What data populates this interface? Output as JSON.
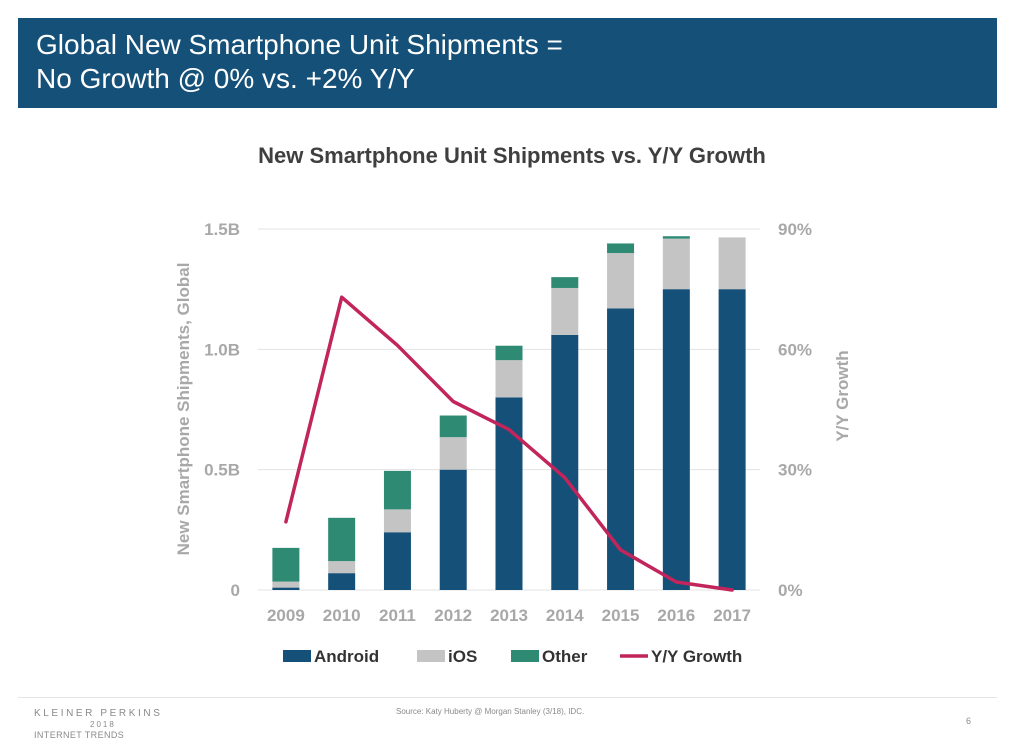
{
  "slide": {
    "title_line1": "Global New Smartphone Unit Shipments =",
    "title_line2": "No Growth @ 0% vs. +2% Y/Y",
    "page_number": "6"
  },
  "footer": {
    "logo_line1": "KLEINER PERKINS",
    "logo_line2": "2018",
    "logo_line3": "INTERNET TRENDS",
    "source": "Source: Katy Huberty @ Morgan Stanley (3/18), IDC."
  },
  "colors": {
    "android": "#155078",
    "ios": "#c4c4c4",
    "other": "#2f8a74",
    "growth_line": "#c2255c",
    "header_bg": "#155078",
    "axis_text": "#a8a8a8",
    "label_text": "#333333",
    "grid": "#e3e3e3"
  },
  "chart_data": {
    "type": "bar",
    "stacked": true,
    "title": "New Smartphone Unit Shipments vs. Y/Y Growth",
    "categories": [
      "2009",
      "2010",
      "2011",
      "2012",
      "2013",
      "2014",
      "2015",
      "2016",
      "2017"
    ],
    "series": [
      {
        "name": "Android",
        "type": "bar",
        "axis": "left",
        "values": [
          0.01,
          0.07,
          0.24,
          0.5,
          0.8,
          1.06,
          1.17,
          1.25,
          1.25
        ]
      },
      {
        "name": "iOS",
        "type": "bar",
        "axis": "left",
        "values": [
          0.025,
          0.05,
          0.095,
          0.135,
          0.155,
          0.195,
          0.23,
          0.21,
          0.215
        ]
      },
      {
        "name": "Other",
        "type": "bar",
        "axis": "left",
        "values": [
          0.14,
          0.18,
          0.16,
          0.09,
          0.06,
          0.045,
          0.04,
          0.01,
          0.0
        ]
      },
      {
        "name": "Y/Y Growth",
        "type": "line",
        "axis": "right",
        "values": [
          17,
          73,
          61,
          47,
          40,
          28,
          10,
          2,
          0
        ]
      }
    ],
    "ylabel": "New Smartphone Shipments, Global",
    "y2label": "Y/Y Growth",
    "ylim": [
      0,
      1.5
    ],
    "y2lim": [
      0,
      90
    ],
    "yticks": [
      {
        "value": 0,
        "label": "0"
      },
      {
        "value": 0.5,
        "label": "0.5B"
      },
      {
        "value": 1.0,
        "label": "1.0B"
      },
      {
        "value": 1.5,
        "label": "1.5B"
      }
    ],
    "y2ticks": [
      {
        "value": 0,
        "label": "0%"
      },
      {
        "value": 30,
        "label": "30%"
      },
      {
        "value": 60,
        "label": "60%"
      },
      {
        "value": 90,
        "label": "90%"
      }
    ],
    "grid": true,
    "legend_position": "bottom"
  }
}
